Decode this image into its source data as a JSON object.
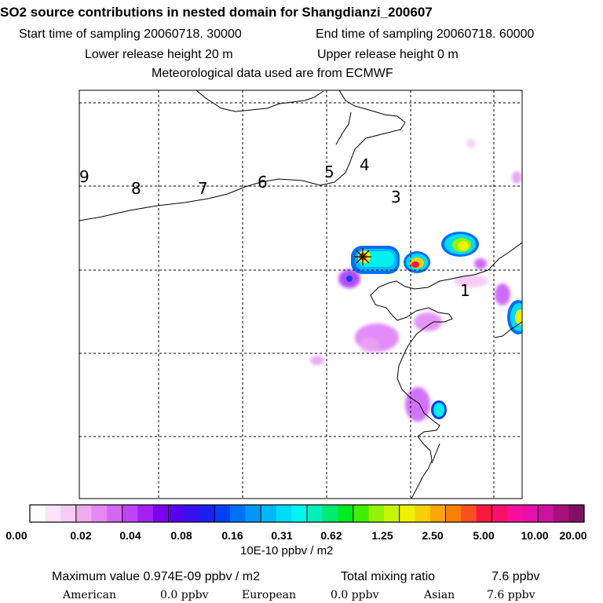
{
  "header": {
    "title": "SO2 source contributions in nested domain for Shangdianzi_200607",
    "start_time": "Start time of sampling 20060718. 30000",
    "end_time": "End time of sampling 20060718. 60000",
    "lower_release": "Lower release height   20 m",
    "upper_release": "Upper release height    0 m",
    "met_data": "Meteorological data used are from ECMWF"
  },
  "map": {
    "day_labels": [
      "9",
      "8",
      "7",
      "6",
      "5",
      "4",
      "3",
      "1"
    ],
    "station": "Shangdianzi",
    "colors": {
      "coast": "#000000",
      "grid": "#000000",
      "station_marker": "#000000"
    }
  },
  "legend": {
    "tick_labels": [
      "0.00",
      "0.02",
      "0.04",
      "0.08",
      "0.16",
      "0.31",
      "0.62",
      "1.25",
      "2.50",
      "5.00",
      "10.00",
      "20.00"
    ],
    "colors": [
      "#ffffff",
      "#fbe3fb",
      "#f6ccf6",
      "#f0aaf0",
      "#e488f4",
      "#d766f6",
      "#c044f6",
      "#a322f3",
      "#7f00f0",
      "#5a00ee",
      "#3a10f0",
      "#1a20f4",
      "#0040f8",
      "#0070f8",
      "#0098f8",
      "#00b8f8",
      "#00dcf6",
      "#00f4f0",
      "#00f0b8",
      "#00ec70",
      "#00ea20",
      "#40f000",
      "#90f400",
      "#c8f400",
      "#f0f000",
      "#f8d000",
      "#f8a800",
      "#f88000",
      "#f85020",
      "#f81840",
      "#f8106c",
      "#f8109c",
      "#e810a8",
      "#cc10a0",
      "#a8107c",
      "#801060"
    ],
    "units": "10E-10 ppbv / m2"
  },
  "summary": {
    "max_value": "Maximum value  0.974E-09 ppbv / m2",
    "total_label": "Total mixing ratio",
    "total_value": "7.6 ppbv",
    "regions": [
      {
        "name": "American",
        "value": "0.0 ppbv"
      },
      {
        "name": "European",
        "value": "0.0 ppbv"
      },
      {
        "name": "Asian",
        "value": "7.6 ppbv"
      }
    ]
  }
}
